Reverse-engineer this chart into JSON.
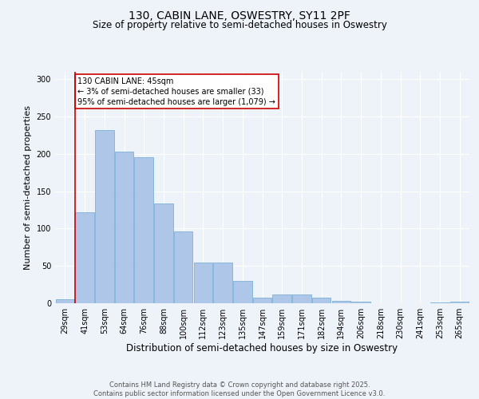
{
  "title1": "130, CABIN LANE, OSWESTRY, SY11 2PF",
  "title2": "Size of property relative to semi-detached houses in Oswestry",
  "xlabel": "Distribution of semi-detached houses by size in Oswestry",
  "ylabel": "Number of semi-detached properties",
  "categories": [
    "29sqm",
    "41sqm",
    "53sqm",
    "64sqm",
    "76sqm",
    "88sqm",
    "100sqm",
    "112sqm",
    "123sqm",
    "135sqm",
    "147sqm",
    "159sqm",
    "171sqm",
    "182sqm",
    "194sqm",
    "206sqm",
    "218sqm",
    "230sqm",
    "241sqm",
    "253sqm",
    "265sqm"
  ],
  "values": [
    5,
    122,
    232,
    203,
    196,
    134,
    96,
    55,
    55,
    30,
    8,
    12,
    12,
    7,
    3,
    2,
    0,
    0,
    0,
    1,
    2
  ],
  "bar_color": "#aec6e8",
  "bar_edge_color": "#6aaad4",
  "annotation_text": "130 CABIN LANE: 45sqm\n← 3% of semi-detached houses are smaller (33)\n95% of semi-detached houses are larger (1,079) →",
  "annotation_box_color": "#ffffff",
  "annotation_box_edge_color": "#cc0000",
  "vline_color": "#cc0000",
  "vline_x_index": 1,
  "ylim": [
    0,
    310
  ],
  "yticks": [
    0,
    50,
    100,
    150,
    200,
    250,
    300
  ],
  "background_color": "#eef2f9",
  "grid_color": "#ffffff",
  "footer_text": "Contains HM Land Registry data © Crown copyright and database right 2025.\nContains public sector information licensed under the Open Government Licence v3.0.",
  "title_fontsize": 10,
  "subtitle_fontsize": 8.5,
  "xlabel_fontsize": 8.5,
  "ylabel_fontsize": 8,
  "tick_fontsize": 7,
  "annotation_fontsize": 7,
  "footer_fontsize": 6
}
